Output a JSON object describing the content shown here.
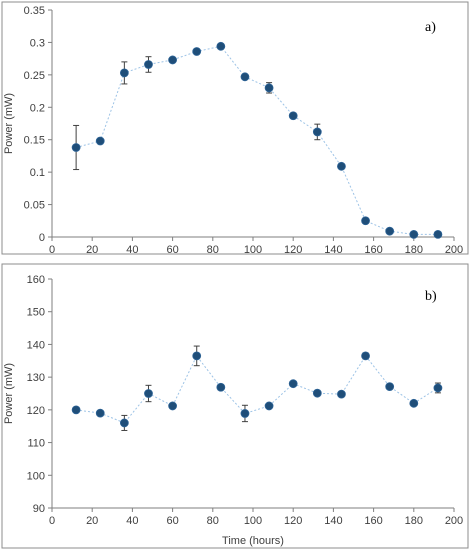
{
  "chart_data": [
    {
      "type": "scatter",
      "panel_label": "a)",
      "xlabel": "",
      "ylabel": "Power (mW)",
      "xlim": [
        0,
        200
      ],
      "ylim": [
        0,
        0.35
      ],
      "x_ticks": [
        0,
        20,
        40,
        60,
        80,
        100,
        120,
        140,
        160,
        180,
        200
      ],
      "y_ticks": [
        0,
        0.05,
        0.1,
        0.15,
        0.2,
        0.25,
        0.3,
        0.35
      ],
      "y_tick_labels": [
        "0",
        "0.05",
        "0.1",
        "0.15",
        "0.2",
        "0.25",
        "0.3",
        "0.35"
      ],
      "connected": true,
      "series_color": "#1f4e79",
      "line_color": "#9dc3e6",
      "series": [
        {
          "x": [
            12,
            24,
            36,
            48,
            60,
            72,
            84,
            96,
            108,
            120,
            132,
            144,
            156,
            168,
            180,
            192
          ],
          "y": [
            0.138,
            0.148,
            0.253,
            0.266,
            0.273,
            0.286,
            0.294,
            0.247,
            0.23,
            0.187,
            0.162,
            0.109,
            0.025,
            0.009,
            0.004,
            0.004
          ],
          "error": [
            0.034,
            0.002,
            0.017,
            0.012,
            0.003,
            0.002,
            0.003,
            0.002,
            0.008,
            0.003,
            0.012,
            0.003,
            0.002,
            0.002,
            0.001,
            0.001
          ]
        }
      ]
    },
    {
      "type": "scatter",
      "panel_label": "b)",
      "xlabel": "Time (hours)",
      "ylabel": "Power (mW)",
      "xlim": [
        0,
        200
      ],
      "ylim": [
        90,
        160
      ],
      "x_ticks": [
        0,
        20,
        40,
        60,
        80,
        100,
        120,
        140,
        160,
        180,
        200
      ],
      "y_ticks": [
        90,
        100,
        110,
        120,
        130,
        140,
        150,
        160
      ],
      "y_tick_labels": [
        "90",
        "100",
        "110",
        "120",
        "130",
        "140",
        "150",
        "160"
      ],
      "connected": true,
      "series_color": "#1f4e79",
      "line_color": "#9dc3e6",
      "series": [
        {
          "x": [
            12,
            24,
            36,
            48,
            60,
            72,
            84,
            96,
            108,
            120,
            132,
            144,
            156,
            168,
            180,
            192
          ],
          "y": [
            120.0,
            119.0,
            116.0,
            125.0,
            121.2,
            136.5,
            126.9,
            118.9,
            121.2,
            128.0,
            125.1,
            124.8,
            136.5,
            127.1,
            122.0,
            126.7
          ],
          "error": [
            0.5,
            0.8,
            2.3,
            2.5,
            0.5,
            3.0,
            0.8,
            2.5,
            0.5,
            0.5,
            0.5,
            0.5,
            0.9,
            0.5,
            0.5,
            1.5
          ]
        }
      ]
    }
  ]
}
